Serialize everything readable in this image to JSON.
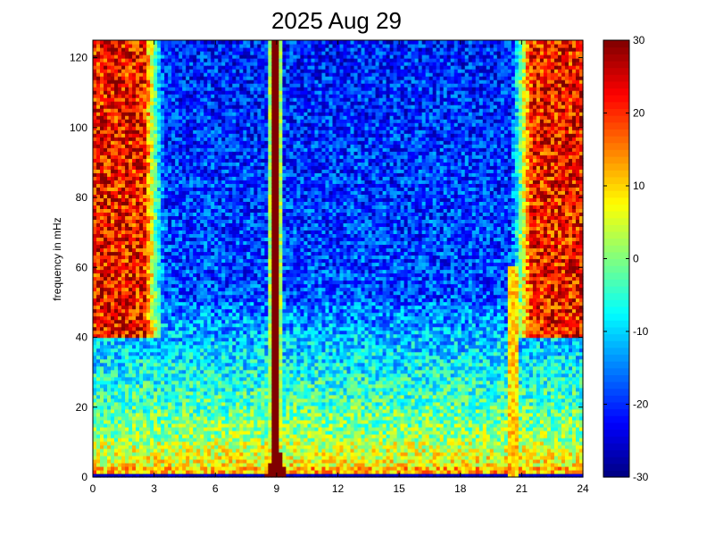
{
  "chart_data": {
    "type": "heatmap",
    "title": "2025 Aug 29",
    "xlabel": "",
    "ylabel": "frequency in mHz",
    "xlim": [
      0,
      24
    ],
    "ylim": [
      0,
      125
    ],
    "x_ticks": [
      0,
      3,
      6,
      9,
      12,
      15,
      18,
      21,
      24
    ],
    "y_ticks": [
      0,
      20,
      40,
      60,
      80,
      100,
      120
    ],
    "colorbar": {
      "range": [
        -30,
        30
      ],
      "ticks": [
        30,
        20,
        10,
        0,
        -10,
        -20,
        -30
      ],
      "colormap": "jet"
    },
    "features": [
      {
        "time_hours": 9.0,
        "note": "broadband high-power column at about 8.5–9.5 h spanning all frequencies"
      },
      {
        "time_hours": 20.6,
        "note": "elevated power streak near 20.5–21 h at low frequencies"
      }
    ],
    "summary_levels": {
      "low_frequency_band_0_10_mHz": "approx 5 to 15",
      "mid_band_10_50_mHz": "approx -15 to 0",
      "high_band_50_125_mHz_daytime_4_20_h": "approx -25 to -15",
      "high_band_night_0_3_h_and_21_24_h": "approx 25 to 30"
    }
  }
}
